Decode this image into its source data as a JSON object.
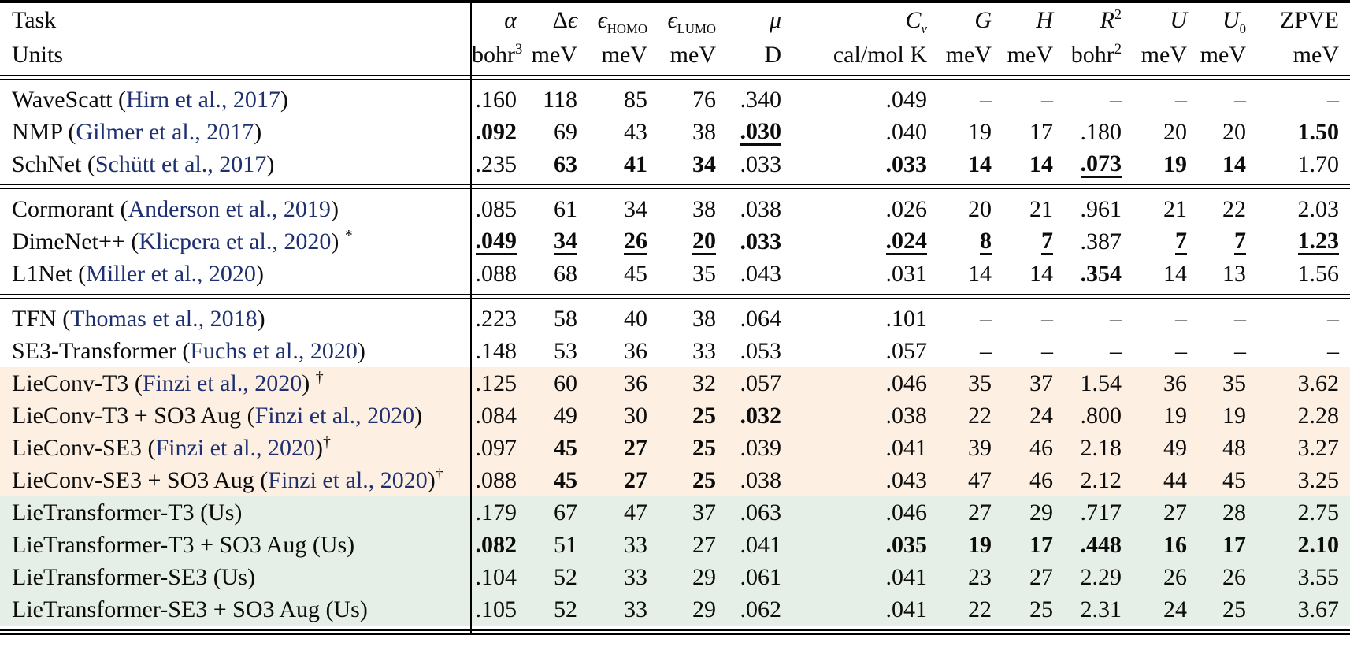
{
  "colors": {
    "link": "#1e3070",
    "row_orange": "#fdf0e3",
    "row_green": "#e6efe7",
    "rule": "#000000",
    "background": "#ffffff"
  },
  "table": {
    "header": {
      "task_label": "Task",
      "units_label": "Units",
      "columns": [
        {
          "key": "alpha",
          "italic": "α",
          "unit": "bohr",
          "unit_sup": "3"
        },
        {
          "key": "delta-epsilon",
          "roman": "Δ",
          "italic": "ϵ",
          "unit": "meV"
        },
        {
          "key": "epsilon-homo",
          "italic": "ϵ",
          "sub": "HOMO",
          "sub_style": "roman",
          "unit": "meV"
        },
        {
          "key": "epsilon-lumo",
          "italic": "ϵ",
          "sub": "LUMO",
          "sub_style": "roman",
          "unit": "meV"
        },
        {
          "key": "mu",
          "italic": "μ",
          "unit": "D"
        },
        {
          "key": "cv",
          "italic": "C",
          "sub": "ν",
          "sub_style": "italic",
          "unit": "cal/mol K"
        },
        {
          "key": "g",
          "italic": "G",
          "unit": "meV"
        },
        {
          "key": "h",
          "italic": "H",
          "unit": "meV"
        },
        {
          "key": "r2",
          "italic": "R",
          "sup": "2",
          "unit": "bohr",
          "unit_sup": "2"
        },
        {
          "key": "u",
          "italic": "U",
          "unit": "meV"
        },
        {
          "key": "u0",
          "italic": "U",
          "sub": "0",
          "sub_style": "roman",
          "unit": "meV"
        },
        {
          "key": "zpve",
          "roman": "ZPVE",
          "unit": "meV"
        }
      ]
    },
    "groups": [
      {
        "rows": [
          {
            "name": "WaveScatt",
            "cite": "Hirn et al., 2017",
            "vals": [
              [
                ".160"
              ],
              [
                "118"
              ],
              [
                "85"
              ],
              [
                "76"
              ],
              [
                ".340"
              ],
              [
                ".049"
              ],
              [
                "–"
              ],
              [
                "–"
              ],
              [
                "–"
              ],
              [
                "–"
              ],
              [
                "–"
              ],
              [
                "–"
              ]
            ]
          },
          {
            "name": "NMP",
            "cite": "Gilmer et al., 2017",
            "vals": [
              [
                ".092",
                "b"
              ],
              [
                "69"
              ],
              [
                "43"
              ],
              [
                "38"
              ],
              [
                ".030",
                "bu"
              ],
              [
                ".040"
              ],
              [
                "19"
              ],
              [
                "17"
              ],
              [
                ".180"
              ],
              [
                "20"
              ],
              [
                "20"
              ],
              [
                "1.50",
                "b"
              ]
            ]
          },
          {
            "name": "SchNet",
            "cite": "Schütt et al., 2017",
            "vals": [
              [
                ".235"
              ],
              [
                "63",
                "b"
              ],
              [
                "41",
                "b"
              ],
              [
                "34",
                "b"
              ],
              [
                ".033"
              ],
              [
                ".033",
                "b"
              ],
              [
                "14",
                "b"
              ],
              [
                "14",
                "b"
              ],
              [
                ".073",
                "bu"
              ],
              [
                "19",
                "b"
              ],
              [
                "14",
                "b"
              ],
              [
                "1.70"
              ]
            ]
          }
        ]
      },
      {
        "rows": [
          {
            "name": "Cormorant",
            "cite": "Anderson et al., 2019",
            "vals": [
              [
                ".085"
              ],
              [
                "61"
              ],
              [
                "34"
              ],
              [
                "38"
              ],
              [
                ".038"
              ],
              [
                ".026"
              ],
              [
                "20"
              ],
              [
                "21"
              ],
              [
                ".961"
              ],
              [
                "21"
              ],
              [
                "22"
              ],
              [
                "2.03"
              ]
            ]
          },
          {
            "name": "DimeNet++",
            "cite": "Klicpera et al., 2020",
            "sup": "*",
            "sup_space": true,
            "vals": [
              [
                ".049",
                "bu"
              ],
              [
                "34",
                "bu"
              ],
              [
                "26",
                "bu"
              ],
              [
                "20",
                "bu"
              ],
              [
                ".033",
                "b"
              ],
              [
                ".024",
                "bu"
              ],
              [
                "8",
                "bu"
              ],
              [
                "7",
                "bu"
              ],
              [
                ".387"
              ],
              [
                "7",
                "bu"
              ],
              [
                "7",
                "bu"
              ],
              [
                "1.23",
                "bu"
              ]
            ]
          },
          {
            "name": "L1Net",
            "cite": "Miller et al., 2020",
            "vals": [
              [
                ".088"
              ],
              [
                "68"
              ],
              [
                "45"
              ],
              [
                "35"
              ],
              [
                ".043"
              ],
              [
                ".031"
              ],
              [
                "14"
              ],
              [
                "14"
              ],
              [
                ".354",
                "b"
              ],
              [
                "14"
              ],
              [
                "13"
              ],
              [
                "1.56"
              ]
            ]
          }
        ]
      },
      {
        "rows": [
          {
            "name": "TFN",
            "cite": "Thomas et al., 2018",
            "vals": [
              [
                ".223"
              ],
              [
                "58"
              ],
              [
                "40"
              ],
              [
                "38"
              ],
              [
                ".064"
              ],
              [
                ".101"
              ],
              [
                "–"
              ],
              [
                "–"
              ],
              [
                "–"
              ],
              [
                "–"
              ],
              [
                "–"
              ],
              [
                "–"
              ]
            ]
          },
          {
            "name": "SE3-Transformer",
            "cite": "Fuchs et al., 2020",
            "vals": [
              [
                ".148"
              ],
              [
                "53"
              ],
              [
                "36"
              ],
              [
                "33"
              ],
              [
                ".053"
              ],
              [
                ".057"
              ],
              [
                "–"
              ],
              [
                "–"
              ],
              [
                "–"
              ],
              [
                "–"
              ],
              [
                "–"
              ],
              [
                "–"
              ]
            ]
          },
          {
            "name": "LieConv-T3",
            "cite": "Finzi et al., 2020",
            "sup": "†",
            "sup_space": true,
            "bg": "row_orange",
            "vals": [
              [
                ".125"
              ],
              [
                "60"
              ],
              [
                "36"
              ],
              [
                "32"
              ],
              [
                ".057"
              ],
              [
                ".046"
              ],
              [
                "35"
              ],
              [
                "37"
              ],
              [
                "1.54"
              ],
              [
                "36"
              ],
              [
                "35"
              ],
              [
                "3.62"
              ]
            ]
          },
          {
            "name": "LieConv-T3 + SO3 Aug",
            "cite": "Finzi et al., 2020",
            "bg": "row_orange",
            "vals": [
              [
                ".084"
              ],
              [
                "49"
              ],
              [
                "30"
              ],
              [
                "25",
                "b"
              ],
              [
                ".032",
                "b"
              ],
              [
                ".038"
              ],
              [
                "22"
              ],
              [
                "24"
              ],
              [
                ".800"
              ],
              [
                "19"
              ],
              [
                "19"
              ],
              [
                "2.28"
              ]
            ]
          },
          {
            "name": "LieConv-SE3",
            "cite": "Finzi et al., 2020",
            "sup": "†",
            "bg": "row_orange",
            "vals": [
              [
                ".097"
              ],
              [
                "45",
                "b"
              ],
              [
                "27",
                "b"
              ],
              [
                "25",
                "b"
              ],
              [
                ".039"
              ],
              [
                ".041"
              ],
              [
                "39"
              ],
              [
                "46"
              ],
              [
                "2.18"
              ],
              [
                "49"
              ],
              [
                "48"
              ],
              [
                "3.27"
              ]
            ]
          },
          {
            "name": "LieConv-SE3 + SO3 Aug",
            "cite": "Finzi et al., 2020",
            "sup": "†",
            "bg": "row_orange",
            "vals": [
              [
                ".088"
              ],
              [
                "45",
                "b"
              ],
              [
                "27",
                "b"
              ],
              [
                "25",
                "b"
              ],
              [
                ".038"
              ],
              [
                ".043"
              ],
              [
                "47"
              ],
              [
                "46"
              ],
              [
                "2.12"
              ],
              [
                "44"
              ],
              [
                "45"
              ],
              [
                "3.25"
              ]
            ]
          },
          {
            "name": "LieTransformer-T3 (Us)",
            "bg": "row_green",
            "vals": [
              [
                ".179"
              ],
              [
                "67"
              ],
              [
                "47"
              ],
              [
                "37"
              ],
              [
                ".063"
              ],
              [
                ".046"
              ],
              [
                "27"
              ],
              [
                "29"
              ],
              [
                ".717"
              ],
              [
                "27"
              ],
              [
                "28"
              ],
              [
                "2.75"
              ]
            ]
          },
          {
            "name": "LieTransformer-T3 + SO3 Aug (Us)",
            "bg": "row_green",
            "vals": [
              [
                ".082",
                "b"
              ],
              [
                "51"
              ],
              [
                "33"
              ],
              [
                "27"
              ],
              [
                ".041"
              ],
              [
                ".035",
                "b"
              ],
              [
                "19",
                "b"
              ],
              [
                "17",
                "b"
              ],
              [
                ".448",
                "b"
              ],
              [
                "16",
                "b"
              ],
              [
                "17",
                "b"
              ],
              [
                "2.10",
                "b"
              ]
            ]
          },
          {
            "name": "LieTransformer-SE3 (Us)",
            "bg": "row_green",
            "vals": [
              [
                ".104"
              ],
              [
                "52"
              ],
              [
                "33"
              ],
              [
                "29"
              ],
              [
                ".061"
              ],
              [
                ".041"
              ],
              [
                "23"
              ],
              [
                "27"
              ],
              [
                "2.29"
              ],
              [
                "26"
              ],
              [
                "26"
              ],
              [
                "3.55"
              ]
            ]
          },
          {
            "name": "LieTransformer-SE3 + SO3 Aug (Us)",
            "bg": "row_green",
            "vals": [
              [
                ".105"
              ],
              [
                "52"
              ],
              [
                "33"
              ],
              [
                "29"
              ],
              [
                ".062"
              ],
              [
                ".041"
              ],
              [
                "22"
              ],
              [
                "25"
              ],
              [
                "2.31"
              ],
              [
                "24"
              ],
              [
                "25"
              ],
              [
                "3.67"
              ]
            ]
          }
        ]
      }
    ]
  }
}
